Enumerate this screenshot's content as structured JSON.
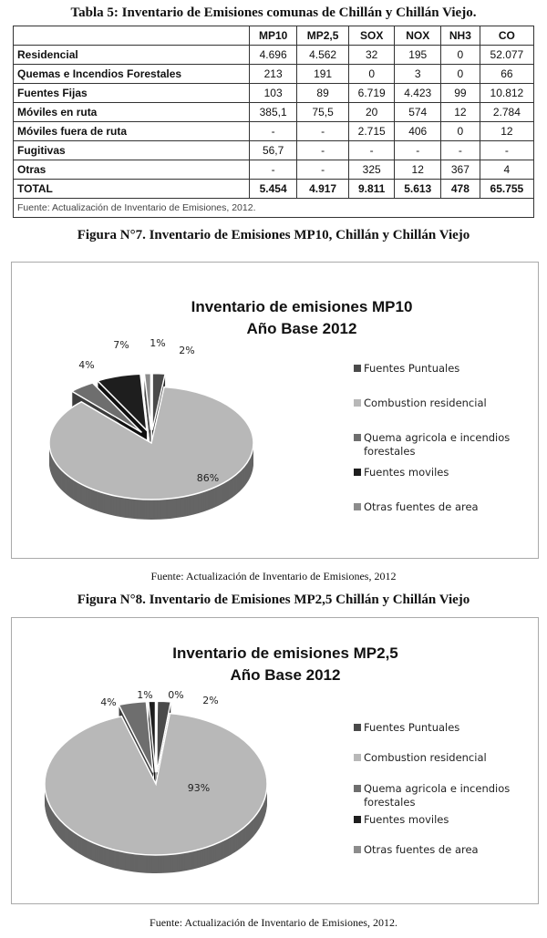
{
  "table": {
    "title": "Tabla 5: Inventario de Emisiones comunas de Chillán y Chillán Viejo.",
    "columns": [
      "",
      "MP10",
      "MP2,5",
      "SOX",
      "NOX",
      "NH3",
      "CO"
    ],
    "column_display": [
      {
        "base": "MP",
        "sub": "10"
      },
      {
        "base": "MP",
        "sub": "2,5"
      },
      {
        "base": "SO",
        "sub": "X"
      },
      {
        "base": "NO",
        "sub": "X"
      },
      {
        "base": "NH",
        "sub": "3"
      },
      {
        "base": "CO",
        "sub": ""
      }
    ],
    "rows": [
      [
        "Residencial",
        "4.696",
        "4.562",
        "32",
        "195",
        "0",
        "52.077"
      ],
      [
        "Quemas e Incendios Forestales",
        "213",
        "191",
        "0",
        "3",
        "0",
        "66"
      ],
      [
        "Fuentes Fijas",
        "103",
        "89",
        "6.719",
        "4.423",
        "99",
        "10.812"
      ],
      [
        "Móviles en ruta",
        "385,1",
        "75,5",
        "20",
        "574",
        "12",
        "2.784"
      ],
      [
        "Móviles fuera de ruta",
        "-",
        "-",
        "2.715",
        "406",
        "0",
        "12"
      ],
      [
        "Fugitivas",
        "56,7",
        "-",
        "-",
        "-",
        "-",
        "-"
      ],
      [
        "Otras",
        "-",
        "-",
        "325",
        "12",
        "367",
        "4"
      ]
    ],
    "total": [
      "TOTAL",
      "5.454",
      "4.917",
      "9.811",
      "5.613",
      "478",
      "65.755"
    ],
    "footnote": "Fuente: Actualización de Inventario de Emisiones, 2012."
  },
  "figure7": {
    "caption": "Figura N°7. Inventario de Emisiones MP10, Chillán y Chillán Viejo",
    "source": "Fuente: Actualización de Inventario de Emisiones, 2012"
  },
  "figure8": {
    "caption": "Figura N°8. Inventario de Emisiones MP2,5 Chillán y Chillán Viejo",
    "source": "Fuente: Actualización de Inventario de Emisiones, 2012."
  },
  "chart_data": [
    {
      "type": "pie",
      "title": "Inventario de emisiones  MP10",
      "subtitle": "Año Base 2012",
      "categories": [
        "Fuentes Puntuales",
        "Combustion residencial",
        "Quema agricola e incendios forestales",
        "Fuentes moviles",
        "Otras fuentes de area"
      ],
      "values": [
        2,
        86,
        4,
        7,
        1
      ],
      "labels": [
        "2%",
        "86%",
        "4%",
        "7%",
        "1%"
      ],
      "colors": [
        "#4a4a4a",
        "#b8b8b8",
        "#6e6e6e",
        "#1e1e1e",
        "#8c8c8c"
      ],
      "legend": "right",
      "style": "3d-exploded"
    },
    {
      "type": "pie",
      "title": "Inventario de emisiones  MP2,5",
      "subtitle": "Año Base 2012",
      "categories": [
        "Fuentes Puntuales",
        "Combustion residencial",
        "Quema agricola e incendios forestales",
        "Fuentes moviles",
        "Otras fuentes de area"
      ],
      "values": [
        2,
        93,
        4,
        1,
        0
      ],
      "labels": [
        "2%",
        "93%",
        "4%",
        "1%",
        "0%"
      ],
      "colors": [
        "#4a4a4a",
        "#b8b8b8",
        "#6e6e6e",
        "#1e1e1e",
        "#8c8c8c"
      ],
      "legend": "right",
      "style": "3d-exploded"
    }
  ]
}
